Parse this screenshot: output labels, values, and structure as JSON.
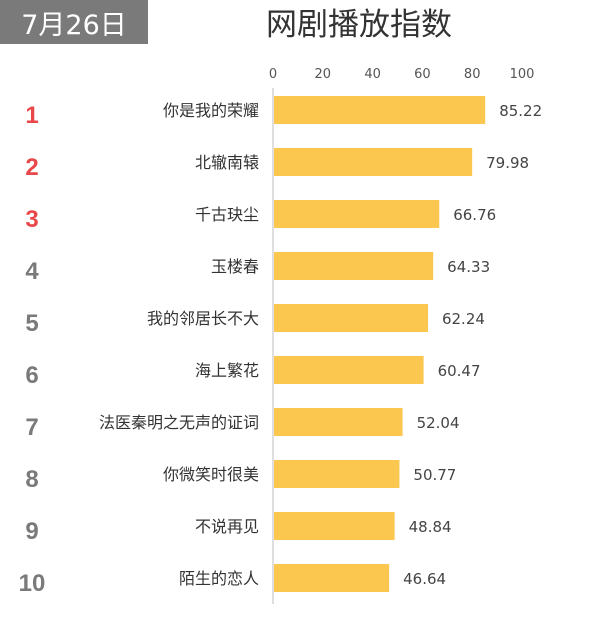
{
  "header": {
    "date": "7月26日",
    "title": "网剧播放指数"
  },
  "colors": {
    "bar": "#FCC74E",
    "rank_top": "#E8484A",
    "rank_rest": "#7A7A7A",
    "axis": "#BDBDBD",
    "badge_bg": "#7A7A7A"
  },
  "chart_data": {
    "type": "bar",
    "orientation": "horizontal",
    "title": "网剧播放指数",
    "xlim": [
      0,
      100
    ],
    "x_ticks": [
      0,
      20,
      40,
      60,
      80,
      100
    ],
    "x_tick_labels": [
      "0",
      "20",
      "40",
      "60",
      "80",
      "100"
    ],
    "grid": false,
    "ranks": [
      "1",
      "2",
      "3",
      "4",
      "5",
      "6",
      "7",
      "8",
      "9",
      "10"
    ],
    "categories": [
      "你是我的荣耀",
      "北辙南辕",
      "千古玦尘",
      "玉楼春",
      "我的邻居长不大",
      "海上繁花",
      "法医秦明之无声的证词",
      "你微笑时很美",
      "不说再见",
      "陌生的恋人"
    ],
    "values": [
      85.22,
      79.98,
      66.76,
      64.33,
      62.24,
      60.47,
      52.04,
      50.77,
      48.84,
      46.64
    ],
    "value_labels": [
      "85.22",
      "79.98",
      "66.76",
      "64.33",
      "62.24",
      "60.47",
      "52.04",
      "50.77",
      "48.84",
      "46.64"
    ]
  }
}
